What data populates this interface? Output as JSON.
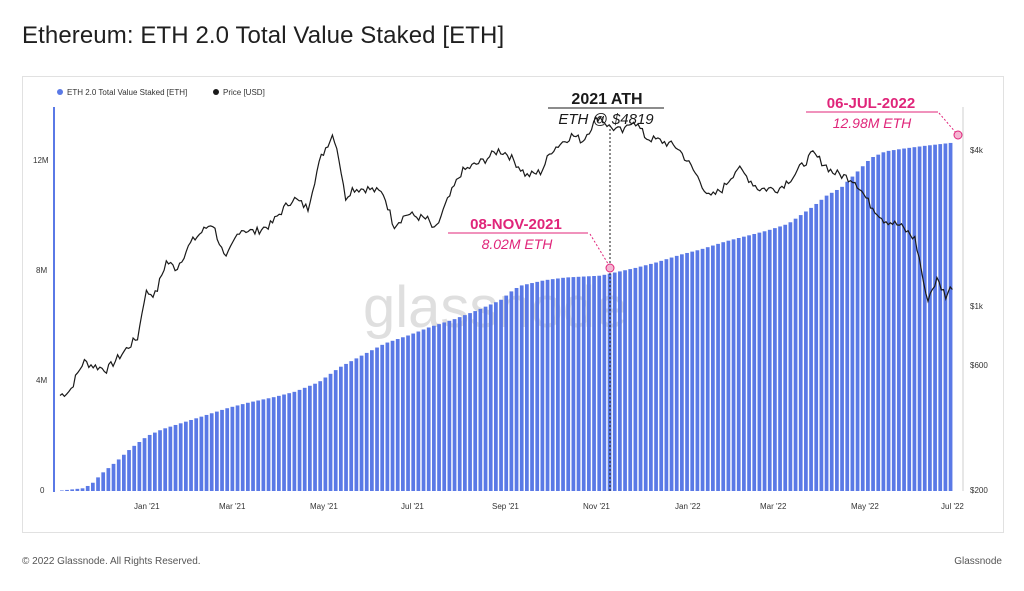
{
  "title": "Ethereum: ETH 2.0 Total Value Staked [ETH]",
  "footer": {
    "copyright": "© 2022 Glassnode. All Rights Reserved.",
    "brand": "Glassnode"
  },
  "watermark": "glassnode",
  "colors": {
    "staked": "#5a79e6",
    "price": "#1a1a1a",
    "accent": "#e0257a",
    "left_axis": "#5a79e6"
  },
  "chart_data": {
    "type": "bar",
    "title": "Ethereum: ETH 2.0 Total Value Staked [ETH]",
    "legend": [
      "ETH 2.0 Total Value Staked [ETH]",
      "Price [USD]"
    ],
    "legend_position": "top-left",
    "grid": false,
    "x_ticks": [
      "Jan '21",
      "Mar '21",
      "May '21",
      "Jul '21",
      "Sep '21",
      "Nov '21",
      "Jan '22",
      "Mar '22",
      "May '22",
      "Jul '22"
    ],
    "y_left": {
      "ticks": [
        "0",
        "4M",
        "8M",
        "12M"
      ],
      "range": [
        0,
        14300000
      ]
    },
    "y_right": {
      "scale": "log",
      "ticks": [
        "$200",
        "$600",
        "$1k",
        "$4k"
      ],
      "range": [
        200,
        5200
      ]
    },
    "series": [
      {
        "name": "ETH 2.0 Total Value Staked [ETH]",
        "type": "bar",
        "axis": "left",
        "points": [
          [
            "2020-11-08",
            0.02
          ],
          [
            "2020-11-22",
            0.1
          ],
          [
            "2020-11-28",
            0.25
          ],
          [
            "2020-12-05",
            0.65
          ],
          [
            "2020-12-15",
            1.1
          ],
          [
            "2020-12-25",
            1.6
          ],
          [
            "2021-01-05",
            2.05
          ],
          [
            "2021-01-15",
            2.3
          ],
          [
            "2021-02-01",
            2.6
          ],
          [
            "2021-02-15",
            2.85
          ],
          [
            "2021-03-01",
            3.1
          ],
          [
            "2021-03-15",
            3.3
          ],
          [
            "2021-04-01",
            3.5
          ],
          [
            "2021-04-15",
            3.7
          ],
          [
            "2021-05-01",
            4.05
          ],
          [
            "2021-05-15",
            4.6
          ],
          [
            "2021-06-01",
            5.1
          ],
          [
            "2021-06-15",
            5.5
          ],
          [
            "2021-07-01",
            5.8
          ],
          [
            "2021-07-15",
            6.1
          ],
          [
            "2021-08-01",
            6.4
          ],
          [
            "2021-08-15",
            6.7
          ],
          [
            "2021-09-01",
            7.1
          ],
          [
            "2021-09-10",
            7.5
          ],
          [
            "2021-09-15",
            7.65
          ],
          [
            "2021-10-01",
            7.85
          ],
          [
            "2021-10-15",
            7.95
          ],
          [
            "2021-11-08",
            8.02
          ],
          [
            "2021-12-01",
            8.3
          ],
          [
            "2021-12-15",
            8.5
          ],
          [
            "2022-01-01",
            8.8
          ],
          [
            "2022-01-15",
            9.0
          ],
          [
            "2022-02-01",
            9.3
          ],
          [
            "2022-02-15",
            9.5
          ],
          [
            "2022-03-01",
            9.7
          ],
          [
            "2022-03-15",
            9.95
          ],
          [
            "2022-04-01",
            10.6
          ],
          [
            "2022-04-10",
            11.0
          ],
          [
            "2022-04-20",
            11.3
          ],
          [
            "2022-05-01",
            11.9
          ],
          [
            "2022-05-10",
            12.4
          ],
          [
            "2022-05-20",
            12.65
          ],
          [
            "2022-06-01",
            12.75
          ],
          [
            "2022-06-15",
            12.85
          ],
          [
            "2022-07-01",
            12.95
          ],
          [
            "2022-07-06",
            12.98
          ]
        ],
        "unit": "M ETH"
      },
      {
        "name": "Price [USD]",
        "type": "line",
        "axis": "right",
        "points": [
          [
            "2020-11-08",
            450
          ],
          [
            "2020-11-15",
            470
          ],
          [
            "2020-11-24",
            600
          ],
          [
            "2020-11-30",
            580
          ],
          [
            "2020-12-10",
            560
          ],
          [
            "2020-12-20",
            640
          ],
          [
            "2020-12-31",
            740
          ],
          [
            "2021-01-05",
            1080
          ],
          [
            "2021-01-12",
            1060
          ],
          [
            "2021-01-19",
            1400
          ],
          [
            "2021-01-26",
            1320
          ],
          [
            "2021-02-05",
            1650
          ],
          [
            "2021-02-19",
            1950
          ],
          [
            "2021-02-28",
            1400
          ],
          [
            "2021-03-10",
            1850
          ],
          [
            "2021-03-20",
            1800
          ],
          [
            "2021-03-31",
            1920
          ],
          [
            "2021-04-15",
            2400
          ],
          [
            "2021-04-25",
            2200
          ],
          [
            "2021-05-04",
            3400
          ],
          [
            "2021-05-12",
            4150
          ],
          [
            "2021-05-15",
            3600
          ],
          [
            "2021-05-20",
            2400
          ],
          [
            "2021-05-25",
            2600
          ],
          [
            "2021-06-05",
            2600
          ],
          [
            "2021-06-15",
            2500
          ],
          [
            "2021-06-22",
            1900
          ],
          [
            "2021-07-01",
            2100
          ],
          [
            "2021-07-15",
            2000
          ],
          [
            "2021-07-20",
            1800
          ],
          [
            "2021-07-31",
            2500
          ],
          [
            "2021-08-07",
            3000
          ],
          [
            "2021-08-22",
            3300
          ],
          [
            "2021-09-01",
            3600
          ],
          [
            "2021-09-07",
            3500
          ],
          [
            "2021-09-20",
            2900
          ],
          [
            "2021-09-30",
            3000
          ],
          [
            "2021-10-07",
            3600
          ],
          [
            "2021-10-21",
            4100
          ],
          [
            "2021-10-28",
            3900
          ],
          [
            "2021-11-08",
            4819
          ],
          [
            "2021-11-15",
            4400
          ],
          [
            "2021-11-25",
            4200
          ],
          [
            "2021-12-01",
            4700
          ],
          [
            "2021-12-10",
            4000
          ],
          [
            "2021-12-20",
            3900
          ],
          [
            "2021-12-31",
            3700
          ],
          [
            "2022-01-10",
            3100
          ],
          [
            "2022-01-22",
            2400
          ],
          [
            "2022-01-31",
            2600
          ],
          [
            "2022-02-10",
            3100
          ],
          [
            "2022-02-24",
            2600
          ],
          [
            "2022-03-10",
            2600
          ],
          [
            "2022-03-20",
            2900
          ],
          [
            "2022-04-02",
            3500
          ],
          [
            "2022-04-15",
            3000
          ],
          [
            "2022-04-30",
            2800
          ],
          [
            "2022-05-10",
            2300
          ],
          [
            "2022-05-20",
            2000
          ],
          [
            "2022-05-31",
            1900
          ],
          [
            "2022-06-10",
            1700
          ],
          [
            "2022-06-18",
            1000
          ],
          [
            "2022-06-25",
            1200
          ],
          [
            "2022-07-01",
            1050
          ],
          [
            "2022-07-06",
            1150
          ]
        ],
        "unit": "USD"
      }
    ],
    "annotations": {
      "ath": {
        "title": "2021 ATH",
        "subtitle": "ETH @  $4819",
        "date": "2021-11-08",
        "price": 4819
      },
      "nov": {
        "title": "08-NOV-2021",
        "subtitle": "8.02M ETH",
        "date": "2021-11-08",
        "value": 8.02
      },
      "jul": {
        "title": "06-JUL-2022",
        "subtitle": "12.98M ETH",
        "date": "2022-07-06",
        "value": 12.98
      }
    }
  }
}
